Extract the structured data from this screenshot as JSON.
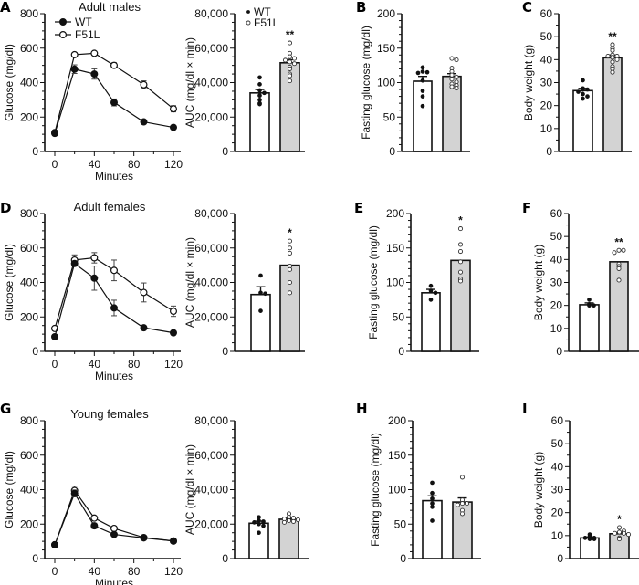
{
  "colors": {
    "wt_fill": "#ffffff",
    "f51l_fill": "#d3d3d3",
    "ink": "#111111"
  },
  "legend": {
    "wt": "WT",
    "f51l": "F51L"
  },
  "chart_data": [
    {
      "panel": "A",
      "type": "line",
      "title": "Adult males",
      "xlabel": "Minutes",
      "ylabel": "Glucose (mg/dl)",
      "xlim": [
        0,
        120
      ],
      "ylim": [
        0,
        800
      ],
      "xticks": [
        "0",
        "40",
        "80",
        "120"
      ],
      "yticks": [
        "0",
        "200",
        "400",
        "600",
        "800"
      ],
      "legend": "top-left",
      "series": [
        {
          "name": "WT",
          "marker": "filled",
          "x": [
            0,
            20,
            40,
            60,
            90,
            120
          ],
          "y": [
            105,
            478,
            450,
            285,
            172,
            140
          ],
          "sem": [
            8,
            25,
            30,
            20,
            10,
            6
          ]
        },
        {
          "name": "F51L",
          "marker": "open",
          "x": [
            0,
            20,
            40,
            60,
            90,
            120
          ],
          "y": [
            110,
            562,
            570,
            500,
            388,
            248
          ],
          "sem": [
            5,
            12,
            10,
            15,
            22,
            18
          ]
        }
      ]
    },
    {
      "panel": "",
      "type": "bar",
      "title": "",
      "xlabel": "",
      "ylabel": "AUC (mg/dl × min)",
      "ylim": [
        0,
        80000
      ],
      "yticks": [
        "0",
        "20,000",
        "40,000",
        "60,000",
        "80,000"
      ],
      "legend": "top-left",
      "significance": "**",
      "groups": [
        {
          "name": "WT",
          "mean": 34000,
          "sem": 2000,
          "points": [
            43000,
            39000,
            35500,
            34000,
            32500,
            30000,
            28000,
            27500
          ]
        },
        {
          "name": "F51L",
          "mean": 51500,
          "sem": 1800,
          "points": [
            63000,
            57000,
            55000,
            54000,
            53000,
            52000,
            51000,
            49000,
            48000,
            45000,
            44000,
            41000
          ]
        }
      ]
    },
    {
      "panel": "B",
      "type": "bar",
      "title": "",
      "xlabel": "",
      "ylabel": "Fasting glucose (mg/dl)",
      "ylim": [
        0,
        200
      ],
      "yticks": [
        "0",
        "50",
        "100",
        "150",
        "200"
      ],
      "significance": "",
      "groups": [
        {
          "name": "WT",
          "mean": 102,
          "sem": 7,
          "points": [
            122,
            116,
            115,
            114,
            103,
            88,
            80,
            66
          ]
        },
        {
          "name": "F51L",
          "mean": 109,
          "sem": 4,
          "points": [
            135,
            133,
            121,
            116,
            111,
            108,
            105,
            101,
            98,
            96,
            94,
            92
          ]
        }
      ]
    },
    {
      "panel": "C",
      "type": "bar",
      "title": "",
      "xlabel": "",
      "ylabel": "Body weight (g)",
      "ylim": [
        0,
        60
      ],
      "yticks": [
        "0",
        "10",
        "20",
        "30",
        "40",
        "50",
        "60"
      ],
      "significance": "**",
      "groups": [
        {
          "name": "WT",
          "mean": 26.5,
          "sem": 1,
          "points": [
            31,
            27.5,
            27,
            27,
            26,
            25,
            24,
            23
          ]
        },
        {
          "name": "F51L",
          "mean": 40.8,
          "sem": 1.2,
          "points": [
            46.5,
            45,
            44,
            42,
            41.5,
            41.5,
            41,
            40,
            39,
            37,
            36,
            34.5
          ]
        }
      ]
    },
    {
      "panel": "D",
      "type": "line",
      "title": "Adult females",
      "xlabel": "Minutes",
      "ylabel": "Glucose (mg/dl)",
      "xlim": [
        0,
        120
      ],
      "ylim": [
        0,
        800
      ],
      "xticks": [
        "0",
        "40",
        "80",
        "120"
      ],
      "yticks": [
        "0",
        "200",
        "400",
        "600",
        "800"
      ],
      "series": [
        {
          "name": "WT",
          "marker": "filled",
          "x": [
            0,
            20,
            40,
            60,
            90,
            120
          ],
          "y": [
            85,
            510,
            425,
            252,
            137,
            108
          ],
          "sem": [
            5,
            15,
            70,
            45,
            12,
            5
          ]
        },
        {
          "name": "F51L",
          "marker": "open",
          "x": [
            0,
            20,
            40,
            60,
            90,
            120
          ],
          "y": [
            133,
            530,
            543,
            470,
            342,
            233
          ],
          "sem": [
            5,
            30,
            30,
            60,
            55,
            30
          ]
        }
      ]
    },
    {
      "panel": "",
      "type": "bar",
      "title": "",
      "xlabel": "",
      "ylabel": "AUC (mg/dl × min)",
      "ylim": [
        0,
        80000
      ],
      "yticks": [
        "0",
        "20,000",
        "40,000",
        "60,000",
        "80,000"
      ],
      "significance": "*",
      "groups": [
        {
          "name": "WT",
          "mean": 33000,
          "sem": 4500,
          "points": [
            44000,
            34000,
            33500,
            23500
          ]
        },
        {
          "name": "F51L",
          "mean": 50000,
          "sem": 0,
          "points": [
            64000,
            60000,
            57000,
            49500,
            47500,
            40000,
            34000
          ]
        }
      ]
    },
    {
      "panel": "E",
      "type": "bar",
      "title": "",
      "xlabel": "",
      "ylabel": "Fasting glucose (mg/dl)",
      "ylim": [
        0,
        200
      ],
      "yticks": [
        "0",
        "50",
        "100",
        "150",
        "200"
      ],
      "significance": "*",
      "groups": [
        {
          "name": "WT",
          "mean": 85,
          "sem": 5,
          "points": [
            95,
            88,
            85,
            75
          ]
        },
        {
          "name": "F51L",
          "mean": 132,
          "sem": 0,
          "points": [
            178,
            155,
            145,
            130,
            115,
            105,
            102
          ]
        }
      ]
    },
    {
      "panel": "F",
      "type": "bar",
      "title": "",
      "xlabel": "",
      "ylabel": "Body weight (g)",
      "ylim": [
        0,
        60
      ],
      "yticks": [
        "0",
        "10",
        "20",
        "30",
        "40",
        "50",
        "60"
      ],
      "significance": "**",
      "groups": [
        {
          "name": "WT",
          "mean": 20.3,
          "sem": 0.8,
          "points": [
            22.5,
            20.5,
            20,
            20
          ]
        },
        {
          "name": "F51L",
          "mean": 39,
          "sem": 0,
          "points": [
            44,
            44,
            43,
            38,
            37,
            36,
            31
          ]
        }
      ]
    },
    {
      "panel": "G",
      "type": "line",
      "title": "Young females",
      "xlabel": "Minutes",
      "ylabel": "Glucose (mg/dl)",
      "xlim": [
        0,
        120
      ],
      "ylim": [
        0,
        800
      ],
      "xticks": [
        "0",
        "40",
        "80",
        "120"
      ],
      "yticks": [
        "0",
        "200",
        "400",
        "600",
        "800"
      ],
      "series": [
        {
          "name": "WT",
          "marker": "filled",
          "x": [
            0,
            20,
            40,
            60,
            90,
            120
          ],
          "y": [
            80,
            378,
            190,
            140,
            120,
            102
          ],
          "sem": [
            3,
            20,
            15,
            5,
            5,
            3
          ]
        },
        {
          "name": "F51L",
          "marker": "open",
          "x": [
            0,
            20,
            40,
            60,
            90,
            120
          ],
          "y": [
            80,
            395,
            235,
            175,
            122,
            102
          ],
          "sem": [
            3,
            25,
            8,
            5,
            5,
            3
          ]
        }
      ]
    },
    {
      "panel": "",
      "type": "bar",
      "title": "",
      "xlabel": "",
      "ylabel": "AUC (mg/dl × min)",
      "ylim": [
        0,
        80000
      ],
      "yticks": [
        "0",
        "20,000",
        "40,000",
        "60,000",
        "80,000"
      ],
      "significance": "",
      "groups": [
        {
          "name": "WT",
          "mean": 20500,
          "sem": 1200,
          "points": [
            24000,
            22000,
            21500,
            21000,
            20000,
            19000,
            15000
          ]
        },
        {
          "name": "F51L",
          "mean": 22800,
          "sem": 600,
          "points": [
            26000,
            24000,
            23500,
            23000,
            22500,
            22000,
            21500,
            21000
          ]
        }
      ]
    },
    {
      "panel": "H",
      "type": "bar",
      "title": "",
      "xlabel": "",
      "ylabel": "Fasting glucose (mg/dl)",
      "ylim": [
        0,
        200
      ],
      "yticks": [
        "0",
        "50",
        "100",
        "150",
        "200"
      ],
      "significance": "",
      "groups": [
        {
          "name": "WT",
          "mean": 84,
          "sem": 7,
          "points": [
            110,
            95,
            87,
            80,
            75,
            55
          ]
        },
        {
          "name": "F51L",
          "mean": 82,
          "sem": 6,
          "points": [
            118,
            85,
            80,
            80,
            78,
            70,
            65
          ]
        }
      ]
    },
    {
      "panel": "I",
      "type": "bar",
      "title": "",
      "xlabel": "",
      "ylabel": "Body weight (g)",
      "ylim": [
        0,
        60
      ],
      "yticks": [
        "0",
        "10",
        "20",
        "30",
        "40",
        "50",
        "60"
      ],
      "significance": "*",
      "groups": [
        {
          "name": "WT",
          "mean": 9,
          "sem": 0.4,
          "points": [
            10.5,
            9.5,
            9,
            9,
            8.5,
            8.5
          ]
        },
        {
          "name": "F51L",
          "mean": 10.8,
          "sem": 0.6,
          "points": [
            13.5,
            12,
            11.5,
            11,
            11,
            10.5,
            9,
            8.5
          ]
        }
      ]
    }
  ]
}
